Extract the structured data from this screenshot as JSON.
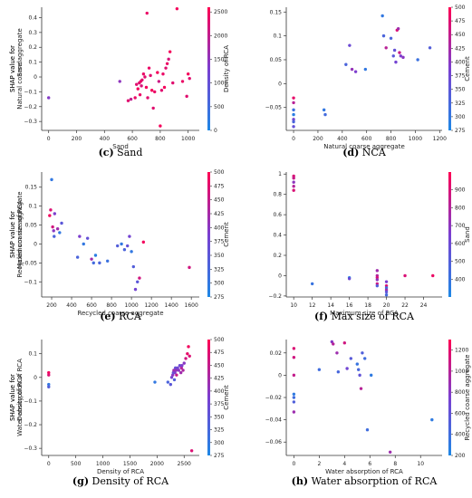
{
  "colorbar_colors": [
    "#1e88e5",
    "#7a3fd1",
    "#ff0052"
  ],
  "chart_data": [
    {
      "type": "scatter",
      "caption_letter": "(c)",
      "caption_text": "Sand",
      "xlabel": "Sand",
      "ylabel": [
        "SHAP value for",
        "Sand"
      ],
      "cbar_label": "Density of RCA",
      "xlim": [
        -50,
        1080
      ],
      "ylim": [
        -0.36,
        0.47
      ],
      "xticks": [
        0,
        200,
        400,
        600,
        800,
        1000
      ],
      "yticks": [
        -0.3,
        -0.2,
        -0.1,
        0.0,
        0.1,
        0.2,
        0.3,
        0.4
      ],
      "cbar_range": [
        0,
        2600
      ],
      "cbar_ticks": [
        0,
        500,
        1000,
        1500,
        2000,
        2500
      ],
      "points": [
        [
          0,
          -0.14,
          1400
        ],
        [
          510,
          -0.03,
          1500
        ],
        [
          570,
          -0.16,
          2300
        ],
        [
          590,
          -0.15,
          2000
        ],
        [
          620,
          -0.14,
          2400
        ],
        [
          630,
          -0.05,
          2300
        ],
        [
          640,
          -0.08,
          2500
        ],
        [
          650,
          -0.04,
          2300
        ],
        [
          655,
          -0.12,
          2400
        ],
        [
          660,
          -0.03,
          2400
        ],
        [
          665,
          -0.06,
          2200
        ],
        [
          670,
          -0.02,
          2300
        ],
        [
          680,
          0.02,
          2400
        ],
        [
          690,
          0.0,
          2300
        ],
        [
          700,
          -0.07,
          2500
        ],
        [
          705,
          0.43,
          2400
        ],
        [
          710,
          -0.14,
          2300
        ],
        [
          720,
          0.06,
          2400
        ],
        [
          730,
          0.01,
          2300
        ],
        [
          740,
          -0.09,
          2500
        ],
        [
          750,
          -0.21,
          2300
        ],
        [
          760,
          -0.1,
          2400
        ],
        [
          780,
          0.03,
          2500
        ],
        [
          790,
          -0.03,
          2100
        ],
        [
          800,
          -0.33,
          2500
        ],
        [
          810,
          -0.09,
          2300
        ],
        [
          820,
          0.02,
          2400
        ],
        [
          830,
          -0.07,
          2500
        ],
        [
          840,
          0.06,
          2300
        ],
        [
          850,
          0.09,
          2400
        ],
        [
          860,
          0.12,
          2200
        ],
        [
          870,
          0.17,
          2500
        ],
        [
          890,
          -0.04,
          2300
        ],
        [
          920,
          0.46,
          2500
        ],
        [
          960,
          -0.03,
          2400
        ],
        [
          990,
          -0.13,
          2300
        ],
        [
          1000,
          0.02,
          2500
        ],
        [
          1010,
          -0.01,
          2300
        ]
      ]
    },
    {
      "type": "scatter",
      "caption_letter": "(d)",
      "caption_text": "NCA",
      "xlabel": "Natural coarse aggregate",
      "ylabel": [
        "SHAP value for",
        "Natural coarse aggregate"
      ],
      "cbar_label": "Cement",
      "xlim": [
        -60,
        1220
      ],
      "ylim": [
        -0.098,
        0.16
      ],
      "xticks": [
        0,
        200,
        400,
        600,
        800,
        1000,
        1200
      ],
      "yticks": [
        -0.05,
        0.0,
        0.05,
        0.1,
        0.15
      ],
      "cbar_range": [
        275,
        500
      ],
      "cbar_ticks": [
        275,
        300,
        325,
        350,
        375,
        400,
        425,
        450,
        475,
        500
      ],
      "points": [
        [
          0,
          -0.03,
          480
        ],
        [
          0,
          -0.04,
          440
        ],
        [
          0,
          -0.055,
          310
        ],
        [
          0,
          -0.065,
          290
        ],
        [
          0,
          -0.075,
          380
        ],
        [
          0,
          -0.08,
          330
        ],
        [
          0,
          -0.09,
          360
        ],
        [
          250,
          -0.055,
          300
        ],
        [
          260,
          -0.065,
          320
        ],
        [
          430,
          0.04,
          330
        ],
        [
          460,
          0.08,
          370
        ],
        [
          480,
          0.03,
          410
        ],
        [
          510,
          0.025,
          390
        ],
        [
          590,
          0.03,
          300
        ],
        [
          730,
          0.142,
          300
        ],
        [
          740,
          0.1,
          330
        ],
        [
          760,
          0.075,
          440
        ],
        [
          800,
          0.095,
          330
        ],
        [
          820,
          0.058,
          350
        ],
        [
          830,
          0.07,
          360
        ],
        [
          840,
          0.045,
          380
        ],
        [
          850,
          0.112,
          470
        ],
        [
          860,
          0.115,
          420
        ],
        [
          870,
          0.065,
          450
        ],
        [
          880,
          0.058,
          390
        ],
        [
          900,
          0.055,
          400
        ],
        [
          1020,
          0.05,
          310
        ],
        [
          1120,
          0.075,
          340
        ]
      ]
    },
    {
      "type": "scatter",
      "caption_letter": "(e)",
      "caption_text": "RCA",
      "xlabel": "Recycled coarse aggregate",
      "ylabel": [
        "SHAP value for",
        "Recycled coarse aggregate"
      ],
      "cbar_label": "Cement",
      "xlim": [
        100,
        1680
      ],
      "ylim": [
        -0.14,
        0.19
      ],
      "xticks": [
        200,
        400,
        600,
        800,
        1000,
        1200,
        1400,
        1600
      ],
      "yticks": [
        -0.1,
        -0.05,
        0.0,
        0.05,
        0.1,
        0.15
      ],
      "cbar_range": [
        275,
        500
      ],
      "cbar_ticks": [
        275,
        300,
        325,
        350,
        375,
        400,
        425,
        450,
        475,
        500
      ],
      "points": [
        [
          180,
          0.075,
          490
        ],
        [
          190,
          0.09,
          470
        ],
        [
          200,
          0.17,
          300
        ],
        [
          210,
          0.045,
          460
        ],
        [
          220,
          0.035,
          400
        ],
        [
          225,
          0.02,
          330
        ],
        [
          230,
          0.08,
          390
        ],
        [
          260,
          0.04,
          420
        ],
        [
          280,
          0.03,
          300
        ],
        [
          300,
          0.055,
          350
        ],
        [
          460,
          -0.035,
          330
        ],
        [
          480,
          0.02,
          390
        ],
        [
          520,
          0.0,
          300
        ],
        [
          560,
          0.015,
          360
        ],
        [
          600,
          -0.04,
          420
        ],
        [
          620,
          -0.05,
          320
        ],
        [
          640,
          -0.03,
          290
        ],
        [
          680,
          -0.05,
          330
        ],
        [
          760,
          -0.045,
          310
        ],
        [
          860,
          -0.005,
          340
        ],
        [
          900,
          0.0,
          300
        ],
        [
          930,
          -0.015,
          330
        ],
        [
          960,
          -0.005,
          360
        ],
        [
          980,
          0.02,
          380
        ],
        [
          1000,
          -0.02,
          300
        ],
        [
          1020,
          -0.06,
          340
        ],
        [
          1040,
          -0.12,
          380
        ],
        [
          1060,
          -0.1,
          350
        ],
        [
          1080,
          -0.09,
          460
        ],
        [
          1120,
          0.005,
          490
        ],
        [
          1580,
          -0.062,
          460
        ]
      ]
    },
    {
      "type": "scatter",
      "caption_letter": "(f)",
      "caption_text": "Max size of RCA",
      "xlabel": "Maximum size of RCA",
      "ylabel": [
        "SHAP value for",
        "Maximum size of RCA"
      ],
      "cbar_label": "Sand",
      "xlim": [
        9.2,
        26
      ],
      "ylim": [
        -0.21,
        1.02
      ],
      "xticks": [
        10,
        12,
        14,
        16,
        18,
        20,
        22,
        24
      ],
      "yticks": [
        -0.2,
        0.0,
        0.2,
        0.4,
        0.6,
        0.8,
        1.0
      ],
      "cbar_range": [
        300,
        1000
      ],
      "cbar_ticks": [
        400,
        500,
        600,
        700,
        800,
        900
      ],
      "points": [
        [
          10,
          0.98,
          900
        ],
        [
          10,
          0.96,
          850
        ],
        [
          10,
          0.92,
          700
        ],
        [
          10,
          0.88,
          800
        ],
        [
          10,
          0.84,
          900
        ],
        [
          12,
          -0.08,
          400
        ],
        [
          16,
          -0.02,
          350
        ],
        [
          16,
          -0.03,
          600
        ],
        [
          19,
          0.05,
          750
        ],
        [
          19,
          0.0,
          800
        ],
        [
          19,
          -0.02,
          900
        ],
        [
          19,
          -0.04,
          700
        ],
        [
          19,
          -0.08,
          850
        ],
        [
          19,
          -0.1,
          500
        ],
        [
          20,
          -0.06,
          650
        ],
        [
          20,
          -0.1,
          900
        ],
        [
          20,
          -0.12,
          400
        ],
        [
          20,
          -0.14,
          750
        ],
        [
          20,
          -0.16,
          550
        ],
        [
          20,
          -0.19,
          450
        ],
        [
          22,
          0.0,
          900
        ],
        [
          25,
          0.0,
          950
        ]
      ]
    },
    {
      "type": "scatter",
      "caption_letter": "(g)",
      "caption_text": "Density of RCA",
      "xlabel": "Density of RCA",
      "ylabel": [
        "SHAP value for",
        "Density of RCA"
      ],
      "cbar_label": "Cement",
      "xlim": [
        -130,
        2780
      ],
      "ylim": [
        -0.33,
        0.16
      ],
      "xticks": [
        0,
        500,
        1000,
        1500,
        2000,
        2500
      ],
      "yticks": [
        -0.3,
        -0.2,
        -0.1,
        0.0,
        0.1
      ],
      "cbar_range": [
        275,
        500
      ],
      "cbar_ticks": [
        275,
        300,
        325,
        350,
        375,
        400,
        425,
        450,
        475,
        500
      ],
      "points": [
        [
          0,
          0.02,
          490
        ],
        [
          0,
          0.01,
          470
        ],
        [
          0,
          -0.03,
          300
        ],
        [
          0,
          -0.04,
          340
        ],
        [
          1960,
          -0.02,
          300
        ],
        [
          2200,
          -0.02,
          330
        ],
        [
          2250,
          -0.03,
          350
        ],
        [
          2270,
          0.0,
          380
        ],
        [
          2290,
          0.01,
          400
        ],
        [
          2300,
          0.02,
          360
        ],
        [
          2310,
          0.03,
          420
        ],
        [
          2320,
          -0.01,
          340
        ],
        [
          2330,
          0.02,
          390
        ],
        [
          2340,
          0.04,
          360
        ],
        [
          2350,
          0.03,
          410
        ],
        [
          2360,
          0.01,
          450
        ],
        [
          2380,
          0.04,
          380
        ],
        [
          2400,
          0.03,
          400
        ],
        [
          2420,
          0.05,
          370
        ],
        [
          2440,
          0.02,
          420
        ],
        [
          2450,
          0.04,
          440
        ],
        [
          2460,
          0.05,
          390
        ],
        [
          2480,
          0.03,
          430
        ],
        [
          2500,
          0.06,
          400
        ],
        [
          2530,
          0.08,
          460
        ],
        [
          2560,
          0.1,
          480
        ],
        [
          2580,
          0.13,
          490
        ],
        [
          2600,
          0.09,
          470
        ],
        [
          2640,
          -0.31,
          470
        ]
      ]
    },
    {
      "type": "scatter",
      "caption_letter": "(h)",
      "caption_text": "Water absorption of RCA",
      "xlabel": "Water absorption of RCA",
      "ylabel": [
        "SHAP value for",
        "Water absorption of RCA"
      ],
      "cbar_label": "Recycled coarse aggregate",
      "xlim": [
        -0.6,
        11.7
      ],
      "ylim": [
        -0.072,
        0.032
      ],
      "xticks": [
        0,
        2,
        4,
        6,
        8,
        10
      ],
      "yticks": [
        -0.06,
        -0.04,
        -0.02,
        0.0,
        0.02
      ],
      "cbar_range": [
        200,
        1300
      ],
      "cbar_ticks": [
        200,
        400,
        600,
        800,
        1000,
        1200
      ],
      "points": [
        [
          0,
          0.024,
          1150
        ],
        [
          0,
          0.016,
          1100
        ],
        [
          0,
          0.0,
          1050
        ],
        [
          0,
          -0.017,
          300
        ],
        [
          0,
          -0.02,
          400
        ],
        [
          0,
          -0.024,
          500
        ],
        [
          0,
          -0.033,
          900
        ],
        [
          2,
          0.005,
          400
        ],
        [
          3,
          0.03,
          800
        ],
        [
          3.1,
          0.028,
          1000
        ],
        [
          3.4,
          0.02,
          900
        ],
        [
          3.5,
          0.003,
          450
        ],
        [
          4,
          0.029,
          1100
        ],
        [
          4.2,
          0.006,
          700
        ],
        [
          4.5,
          0.015,
          550
        ],
        [
          5,
          0.01,
          350
        ],
        [
          5.1,
          0.005,
          450
        ],
        [
          5.2,
          0.0,
          600
        ],
        [
          5.3,
          -0.012,
          1000
        ],
        [
          5.4,
          0.02,
          500
        ],
        [
          5.6,
          0.015,
          400
        ],
        [
          5.8,
          -0.049,
          400
        ],
        [
          6.1,
          0.0,
          300
        ],
        [
          7.6,
          -0.069,
          900
        ],
        [
          10.9,
          -0.04,
          300
        ]
      ]
    }
  ]
}
